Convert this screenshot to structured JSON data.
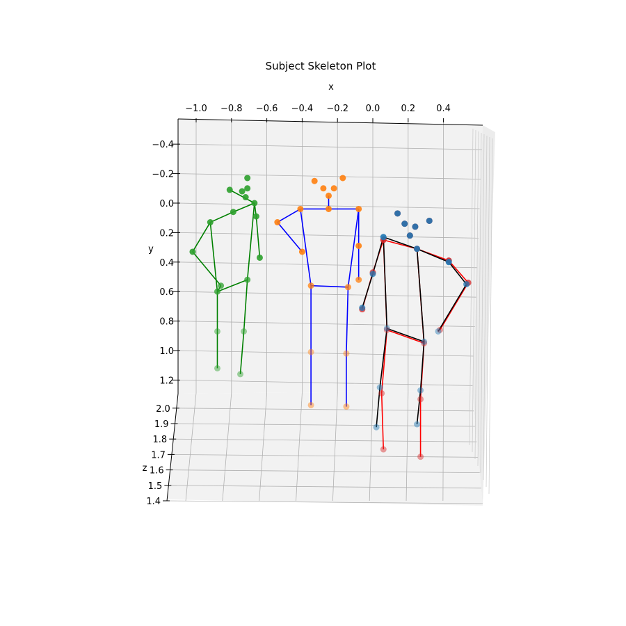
{
  "chart_data": {
    "type": "scatter",
    "title": "Subject Skeleton Plot",
    "xlabel": "x",
    "ylabel": "y",
    "zlabel": "z",
    "x_ticks": [
      "−1.0",
      "−0.8",
      "−0.6",
      "−0.4",
      "−0.2",
      "0.0",
      "0.2",
      "0.4"
    ],
    "y_ticks": [
      "−0.4",
      "−0.2",
      "0.0",
      "0.2",
      "0.4",
      "0.6",
      "0.8",
      "1.0",
      "1.2"
    ],
    "z_ticks": [
      "2.0",
      "1.9",
      "1.8",
      "1.7",
      "1.6",
      "1.5",
      "1.4"
    ],
    "grid": true,
    "panes": "#f2f2f2",
    "skeletons": [
      {
        "point_color": "#2ca02c",
        "bone_color": "#008000",
        "joints": [
          [
            -0.71,
            -0.17
          ],
          [
            -0.81,
            -0.09
          ],
          [
            -0.71,
            -0.1
          ],
          [
            -0.74,
            -0.08
          ],
          [
            -0.72,
            -0.04
          ],
          [
            -0.67,
            0.0
          ],
          [
            -0.79,
            0.06
          ],
          [
            -0.92,
            0.13
          ],
          [
            -1.02,
            0.33
          ],
          [
            -0.66,
            0.09
          ],
          [
            -0.64,
            0.37
          ],
          [
            -0.86,
            0.56
          ],
          [
            -0.88,
            0.6
          ],
          [
            -0.71,
            0.52
          ],
          [
            -0.88,
            0.87
          ],
          [
            -0.73,
            0.87
          ],
          [
            -0.88,
            1.12
          ],
          [
            -0.75,
            1.16
          ]
        ],
        "bones": [
          [
            1,
            5
          ],
          [
            5,
            6
          ],
          [
            6,
            7
          ],
          [
            7,
            8
          ],
          [
            8,
            11
          ],
          [
            11,
            12
          ],
          [
            12,
            7
          ],
          [
            5,
            9
          ],
          [
            9,
            10
          ],
          [
            5,
            13
          ],
          [
            13,
            12
          ],
          [
            12,
            14
          ],
          [
            14,
            16
          ],
          [
            13,
            15
          ],
          [
            15,
            17
          ]
        ]
      },
      {
        "point_color": "#ff7f0e",
        "bone_color": "#0000ff",
        "joints": [
          [
            -0.33,
            -0.15
          ],
          [
            -0.28,
            -0.1
          ],
          [
            -0.22,
            -0.1
          ],
          [
            -0.17,
            -0.17
          ],
          [
            -0.25,
            -0.05
          ],
          [
            -0.41,
            0.04
          ],
          [
            -0.25,
            0.04
          ],
          [
            -0.08,
            0.04
          ],
          [
            -0.54,
            0.13
          ],
          [
            -0.4,
            0.33
          ],
          [
            -0.08,
            0.29
          ],
          [
            -0.08,
            0.52
          ],
          [
            -0.35,
            0.56
          ],
          [
            -0.14,
            0.57
          ],
          [
            -0.35,
            1.01
          ],
          [
            -0.15,
            1.02
          ],
          [
            -0.35,
            1.37
          ],
          [
            -0.15,
            1.38
          ]
        ],
        "bones": [
          [
            4,
            6
          ],
          [
            6,
            5
          ],
          [
            6,
            7
          ],
          [
            5,
            8
          ],
          [
            8,
            9
          ],
          [
            7,
            10
          ],
          [
            10,
            11
          ],
          [
            5,
            12
          ],
          [
            7,
            13
          ],
          [
            12,
            13
          ],
          [
            12,
            14
          ],
          [
            14,
            16
          ],
          [
            13,
            15
          ],
          [
            15,
            17
          ]
        ]
      },
      {
        "point_color": "#d62728",
        "bone_color": "#ff0000",
        "joints": [
          [
            0.14,
            0.07
          ],
          [
            0.18,
            0.14
          ],
          [
            0.24,
            0.16
          ],
          [
            0.32,
            0.12
          ],
          [
            0.21,
            0.22
          ],
          [
            0.06,
            0.25
          ],
          [
            0.25,
            0.31
          ],
          [
            0.43,
            0.39
          ],
          [
            0.54,
            0.54
          ],
          [
            0.0,
            0.47
          ],
          [
            -0.06,
            0.72
          ],
          [
            0.38,
            0.86
          ],
          [
            0.08,
            0.86
          ],
          [
            0.29,
            0.95
          ],
          [
            0.05,
            1.29
          ],
          [
            0.27,
            1.33
          ],
          [
            0.06,
            1.67
          ],
          [
            0.27,
            1.72
          ]
        ],
        "bones": [
          [
            5,
            6
          ],
          [
            6,
            7
          ],
          [
            7,
            8
          ],
          [
            8,
            11
          ],
          [
            5,
            9
          ],
          [
            9,
            10
          ],
          [
            5,
            12
          ],
          [
            12,
            13
          ],
          [
            6,
            13
          ],
          [
            12,
            14
          ],
          [
            14,
            16
          ],
          [
            13,
            15
          ],
          [
            15,
            17
          ]
        ]
      },
      {
        "point_color": "#1f77b4",
        "bone_color": "#000000",
        "joints": [
          [
            0.14,
            0.07
          ],
          [
            0.18,
            0.14
          ],
          [
            0.24,
            0.16
          ],
          [
            0.32,
            0.12
          ],
          [
            0.21,
            0.22
          ],
          [
            0.06,
            0.23
          ],
          [
            0.25,
            0.31
          ],
          [
            0.43,
            0.4
          ],
          [
            0.53,
            0.55
          ],
          [
            0.0,
            0.48
          ],
          [
            -0.06,
            0.71
          ],
          [
            0.37,
            0.87
          ],
          [
            0.08,
            0.85
          ],
          [
            0.29,
            0.94
          ],
          [
            0.04,
            1.25
          ],
          [
            0.27,
            1.27
          ],
          [
            0.02,
            1.52
          ],
          [
            0.25,
            1.5
          ]
        ],
        "bones": [
          [
            5,
            6
          ],
          [
            6,
            7
          ],
          [
            7,
            8
          ],
          [
            8,
            11
          ],
          [
            5,
            9
          ],
          [
            9,
            10
          ],
          [
            5,
            12
          ],
          [
            12,
            13
          ],
          [
            6,
            13
          ],
          [
            12,
            14
          ],
          [
            14,
            16
          ],
          [
            13,
            15
          ],
          [
            15,
            17
          ]
        ]
      }
    ]
  }
}
